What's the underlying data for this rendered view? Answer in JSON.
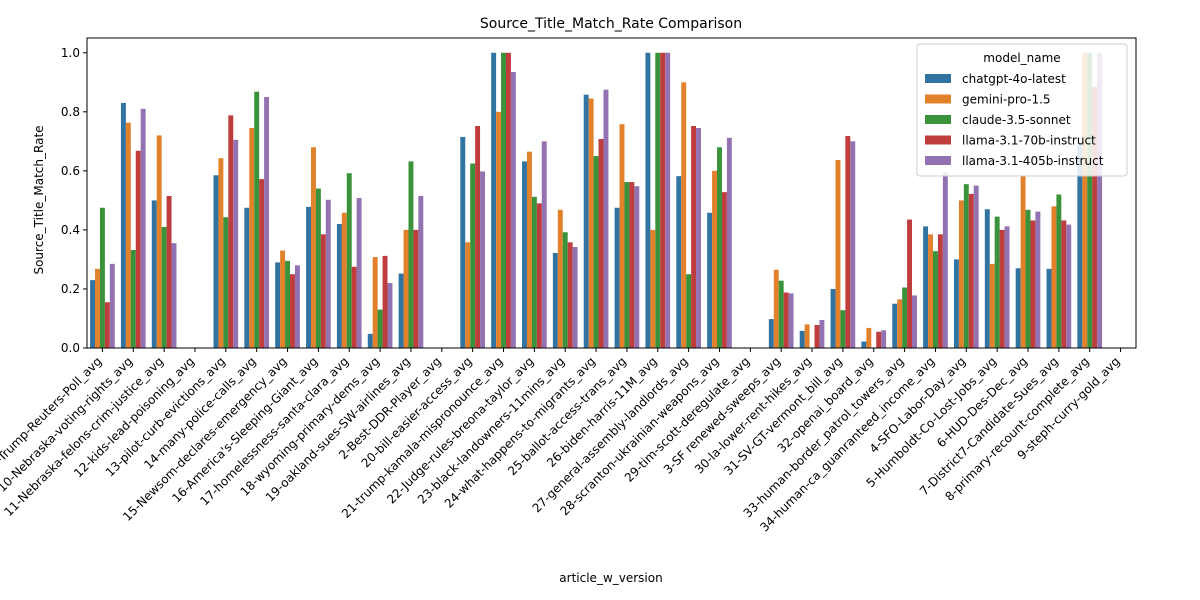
{
  "chart_data": {
    "type": "bar",
    "title": "Source_Title_Match_Rate Comparison",
    "xlabel": "article_w_version",
    "ylabel": "Source_Title_Match_Rate",
    "ylim": [
      0,
      1.05
    ],
    "yticks": [
      "0.0",
      "0.2",
      "0.4",
      "0.6",
      "0.8",
      "1.0"
    ],
    "grid": false,
    "legend": {
      "title": "model_name",
      "placement": "top-right"
    },
    "categories": [
      "1-Harris-Trump-Reuters-Poll_avg",
      "10-Nebraska-voting-rights_avg",
      "11-Nebraska-felons-crim-justice_avg",
      "12-kids-lead-poisoning_avg",
      "13-pilot-curb-evictions_avg",
      "14-many-police-calls_avg",
      "15-Newsom-declares-emergency_avg",
      "16-America's-Sleeping-Giant_avg",
      "17-homelessness-santa-clara_avg",
      "18-wyoming-primary-dems_avg",
      "19-oakland-sues-SW-airlines_avg",
      "2-Best-DDR-Player_avg",
      "20-bill-easier-access_avg",
      "21-trump-kamala-mispronounce_avg",
      "22-Judge-rules-breona-taylor_avg",
      "23-black-landowners-11mins_avg",
      "24-what-happens-to-migrants_avg",
      "25-ballot-access-trans_avg",
      "26-biden-harris-11M_avg",
      "27-general-assembly-landlords_avg",
      "28-scranton-ukrainian-weapons_avg",
      "29-tim-scott-deregulate_avg",
      "3-SF renewed-sweeps_avg",
      "30-la-lower-rent-hikes_avg",
      "31-SV-GT-vermont_bill_avg",
      "32-openai_board_avg",
      "33-human-border_patrol_towers_avg",
      "34-human-ca_guanranteed_income_avg",
      "4-SFO-Labor-Day_avg",
      "5-Humboldt-Co-Lost-Jobs_avg",
      "6-HUD-Des-Dec_avg",
      "7-District7-Candidate-Sues_avg",
      "8-primary-recount-complete_avg",
      "9-steph-curry-gold_avg"
    ],
    "series": [
      {
        "name": "chatgpt-4o-latest",
        "color": "#3274a1",
        "values": [
          0.23,
          0.83,
          0.5,
          0,
          0.585,
          0.475,
          0.29,
          0.478,
          0.42,
          0.048,
          0.252,
          0,
          0.715,
          1.0,
          0.632,
          0.322,
          0.858,
          0.475,
          1.0,
          0.582,
          0.458,
          0,
          0.098,
          0.058,
          0.2,
          0.022,
          0.15,
          0.412,
          0.3,
          0.47,
          0.27,
          0.268,
          0.695,
          0
        ]
      },
      {
        "name": "gemini-pro-1.5",
        "color": "#e1812c",
        "values": [
          0.268,
          0.763,
          0.72,
          0,
          0.643,
          0.745,
          0.33,
          0.68,
          0.458,
          0.308,
          0.4,
          0,
          0.358,
          0.8,
          0.665,
          0.468,
          0.845,
          0.758,
          0.4,
          0.9,
          0.6,
          0,
          0.265,
          0.08,
          0.637,
          0.068,
          0.165,
          0.385,
          0.5,
          0.285,
          0.582,
          0.48,
          1.0,
          0
        ]
      },
      {
        "name": "claude-3.5-sonnet",
        "color": "#3a923a",
        "values": [
          0.475,
          0.332,
          0.41,
          0,
          0.443,
          0.868,
          0.295,
          0.54,
          0.592,
          0.13,
          0.632,
          0,
          0.625,
          1.0,
          0.512,
          0.392,
          0.65,
          0.562,
          1.0,
          0.25,
          0.68,
          0,
          0.228,
          0,
          0.128,
          0,
          0.205,
          0.328,
          0.555,
          0.445,
          0.468,
          0.52,
          1.0,
          0
        ]
      },
      {
        "name": "llama-3.1-70b-instruct",
        "color": "#c03d3e",
        "values": [
          0.155,
          0.668,
          0.515,
          0,
          0.788,
          0.572,
          0.25,
          0.385,
          0.275,
          0.312,
          0.4,
          0,
          0.752,
          1.0,
          0.49,
          0.358,
          0.708,
          0.562,
          1.0,
          0.752,
          0.528,
          0,
          0.188,
          0.078,
          0.718,
          0.055,
          0.435,
          0.385,
          0.522,
          0.4,
          0.432,
          0.432,
          0.885,
          0
        ]
      },
      {
        "name": "llama-3.1-405b-instruct",
        "color": "#9372b2",
        "values": [
          0.285,
          0.81,
          0.355,
          0,
          0.705,
          0.85,
          0.28,
          0.502,
          0.508,
          0.22,
          0.515,
          0,
          0.598,
          0.935,
          0.7,
          0.342,
          0.875,
          0.548,
          1.0,
          0.745,
          0.712,
          0,
          0.185,
          0.095,
          0.7,
          0.06,
          0.178,
          0.595,
          0.55,
          0.412,
          0.462,
          0.418,
          1.0,
          0
        ]
      }
    ]
  }
}
